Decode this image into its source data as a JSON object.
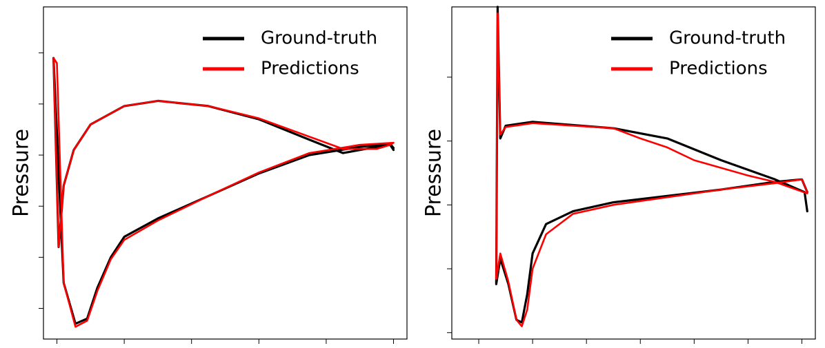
{
  "chart_data": [
    {
      "type": "line",
      "title": "",
      "xlabel": "",
      "ylabel": "Pressure",
      "xlim": [
        -0.04,
        1.04
      ],
      "ylim": [
        -1.8,
        1.45
      ],
      "xticks": [
        0.0,
        0.2,
        0.4,
        0.6,
        0.8,
        1.0
      ],
      "yticks": [
        -1.5,
        -1.0,
        -0.5,
        0.0,
        0.5,
        1.0
      ],
      "tick_labels_shown": false,
      "grid": false,
      "legend": {
        "position": "top-right",
        "entries": [
          "Ground-truth",
          "Predictions"
        ]
      },
      "series": [
        {
          "name": "Ground-truth",
          "color": "#000000",
          "points": [
            [
              1.0,
              0.05
            ],
            [
              0.99,
              0.1
            ],
            [
              0.95,
              0.08
            ],
            [
              0.85,
              0.02
            ],
            [
              0.75,
              0.15
            ],
            [
              0.6,
              0.35
            ],
            [
              0.45,
              0.48
            ],
            [
              0.3,
              0.53
            ],
            [
              0.2,
              0.48
            ],
            [
              0.1,
              0.3
            ],
            [
              0.05,
              0.05
            ],
            [
              0.02,
              -0.3
            ],
            [
              0.005,
              -0.9
            ],
            [
              -0.01,
              0.95
            ],
            [
              0.02,
              -1.25
            ],
            [
              0.055,
              -1.65
            ],
            [
              0.09,
              -1.6
            ],
            [
              0.12,
              -1.3
            ],
            [
              0.16,
              -1.0
            ],
            [
              0.2,
              -0.8
            ],
            [
              0.3,
              -0.62
            ],
            [
              0.45,
              -0.4
            ],
            [
              0.6,
              -0.18
            ],
            [
              0.75,
              0.0
            ],
            [
              0.9,
              0.08
            ],
            [
              0.99,
              0.11
            ],
            [
              1.0,
              0.07
            ]
          ]
        },
        {
          "name": "Predictions",
          "color": "#ff0000",
          "points": [
            [
              1.0,
              0.12
            ],
            [
              0.99,
              0.1
            ],
            [
              0.95,
              0.06
            ],
            [
              0.85,
              0.06
            ],
            [
              0.75,
              0.18
            ],
            [
              0.6,
              0.36
            ],
            [
              0.45,
              0.48
            ],
            [
              0.3,
              0.53
            ],
            [
              0.2,
              0.48
            ],
            [
              0.1,
              0.3
            ],
            [
              0.05,
              0.05
            ],
            [
              0.02,
              -0.3
            ],
            [
              0.005,
              -0.9
            ],
            [
              -0.01,
              0.95
            ],
            [
              0.0,
              0.9
            ],
            [
              0.02,
              -1.25
            ],
            [
              0.055,
              -1.68
            ],
            [
              0.09,
              -1.62
            ],
            [
              0.12,
              -1.33
            ],
            [
              0.16,
              -1.02
            ],
            [
              0.2,
              -0.83
            ],
            [
              0.3,
              -0.64
            ],
            [
              0.45,
              -0.4
            ],
            [
              0.6,
              -0.17
            ],
            [
              0.75,
              0.02
            ],
            [
              0.9,
              0.1
            ],
            [
              1.0,
              0.12
            ]
          ]
        }
      ]
    },
    {
      "type": "line",
      "title": "",
      "xlabel": "",
      "ylabel": "Pressure",
      "xlim": [
        -0.3,
        1.05
      ],
      "ylim": [
        -1.05,
        1.55
      ],
      "xticks": [
        -0.2,
        0.0,
        0.2,
        0.4,
        0.6,
        0.8,
        1.0
      ],
      "yticks": [
        -1.0,
        -0.5,
        0.0,
        0.5,
        1.0
      ],
      "tick_labels_shown": false,
      "grid": false,
      "legend": {
        "position": "top-right",
        "entries": [
          "Ground-truth",
          "Predictions"
        ]
      },
      "series": [
        {
          "name": "Ground-truth",
          "color": "#000000",
          "points": [
            [
              1.02,
              -0.05
            ],
            [
              1.01,
              0.1
            ],
            [
              0.9,
              0.2
            ],
            [
              0.7,
              0.35
            ],
            [
              0.5,
              0.52
            ],
            [
              0.3,
              0.6
            ],
            [
              0.0,
              0.65
            ],
            [
              -0.1,
              0.62
            ],
            [
              -0.12,
              0.52
            ],
            [
              -0.13,
              1.55
            ],
            [
              -0.135,
              -0.62
            ],
            [
              -0.12,
              -0.42
            ],
            [
              -0.09,
              -0.62
            ],
            [
              -0.06,
              -0.9
            ],
            [
              -0.04,
              -0.92
            ],
            [
              -0.02,
              -0.7
            ],
            [
              0.0,
              -0.38
            ],
            [
              0.05,
              -0.15
            ],
            [
              0.15,
              -0.05
            ],
            [
              0.3,
              0.02
            ],
            [
              0.5,
              0.07
            ],
            [
              0.7,
              0.12
            ],
            [
              0.9,
              0.18
            ],
            [
              1.0,
              0.2
            ],
            [
              1.02,
              0.1
            ]
          ]
        },
        {
          "name": "Predictions",
          "color": "#ff0000",
          "points": [
            [
              1.02,
              0.09
            ],
            [
              0.9,
              0.18
            ],
            [
              0.8,
              0.23
            ],
            [
              0.6,
              0.35
            ],
            [
              0.5,
              0.45
            ],
            [
              0.4,
              0.52
            ],
            [
              0.3,
              0.6
            ],
            [
              0.0,
              0.64
            ],
            [
              -0.1,
              0.61
            ],
            [
              -0.12,
              0.55
            ],
            [
              -0.13,
              1.5
            ],
            [
              -0.135,
              -0.58
            ],
            [
              -0.12,
              -0.38
            ],
            [
              -0.09,
              -0.6
            ],
            [
              -0.06,
              -0.9
            ],
            [
              -0.04,
              -0.95
            ],
            [
              -0.02,
              -0.82
            ],
            [
              0.0,
              -0.5
            ],
            [
              0.05,
              -0.23
            ],
            [
              0.15,
              -0.07
            ],
            [
              0.3,
              0.0
            ],
            [
              0.5,
              0.06
            ],
            [
              0.7,
              0.12
            ],
            [
              0.9,
              0.17
            ],
            [
              1.0,
              0.2
            ],
            [
              1.02,
              0.1
            ]
          ]
        }
      ]
    }
  ]
}
